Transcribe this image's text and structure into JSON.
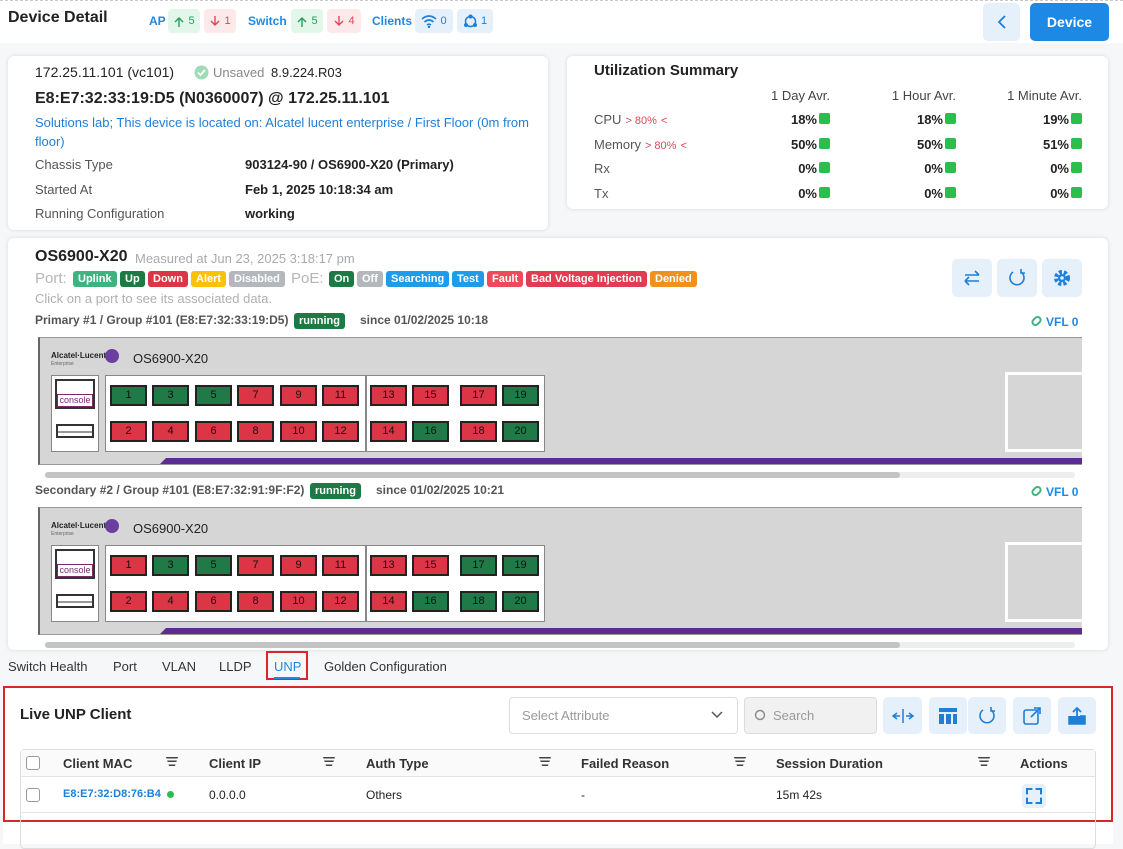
{
  "header": {
    "title": "Device Detail",
    "ap": {
      "label": "AP",
      "up": "5",
      "down": "1"
    },
    "switch": {
      "label": "Switch",
      "up": "5",
      "down": "4"
    },
    "clients": {
      "label": "Clients",
      "wireless": "0",
      "wired": "1"
    },
    "device_button": "Device"
  },
  "device": {
    "address": "172.25.11.101 (vc101)",
    "save_status": "Unsaved",
    "version": "8.9.224.R03",
    "name": "E8:E7:32:33:19:D5 (N0360007) @ 172.25.11.101",
    "location": "Solutions lab; This device is located on: Alcatel lucent enterprise / First Floor (0m from floor)",
    "fields": [
      {
        "label": "Chassis Type",
        "value": "903124-90 / OS6900-X20 (Primary)"
      },
      {
        "label": "Started At",
        "value": "Feb 1, 2025 10:18:34 am"
      },
      {
        "label": "Running Configuration",
        "value": "working"
      }
    ]
  },
  "utilization": {
    "title": "Utilization Summary",
    "columns": [
      "1 Day Avr.",
      "1 Hour Avr.",
      "1 Minute Avr."
    ],
    "rows": [
      {
        "label": "CPU",
        "threshold": "> 80%",
        "marker": "<",
        "values": [
          "18%",
          "18%",
          "19%"
        ]
      },
      {
        "label": "Memory",
        "threshold": "> 80%",
        "marker": "<",
        "values": [
          "50%",
          "50%",
          "51%"
        ]
      },
      {
        "label": "Rx",
        "values": [
          "0%",
          "0%",
          "0%"
        ]
      },
      {
        "label": "Tx",
        "values": [
          "0%",
          "0%",
          "0%"
        ]
      }
    ]
  },
  "chassis": {
    "model": "OS6900-X20",
    "measured": "Measured at Jun 23, 2025 3:18:17 pm",
    "port_label": "Port:",
    "port_states": [
      {
        "label": "Uplink",
        "color": "#3fb37f"
      },
      {
        "label": "Up",
        "color": "#1d7a45"
      },
      {
        "label": "Down",
        "color": "#dc3545"
      },
      {
        "label": "Alert",
        "color": "#ffc107"
      },
      {
        "label": "Disabled",
        "color": "#b4b8bd"
      }
    ],
    "poe_label": "PoE:",
    "poe_states": [
      {
        "label": "On",
        "color": "#1d7a45"
      },
      {
        "label": "Off",
        "color": "#b4b8bd"
      },
      {
        "label": "Searching",
        "color": "#1f9ce9"
      },
      {
        "label": "Test",
        "color": "#1f9ce9"
      },
      {
        "label": "Fault",
        "color": "#ee4a5a"
      },
      {
        "label": "Bad Voltage Injection",
        "color": "#e23b52"
      },
      {
        "label": "Denied",
        "color": "#f0901e"
      }
    ],
    "hint": "Click on a port to see its associated data.",
    "stacks": [
      {
        "title": "Primary #1 / Group #101 (E8:E7:32:33:19:D5)",
        "status": "running",
        "since": "since 01/02/2025 10:18",
        "vfl": "VFL 0",
        "brand": "Alcatel·Lucent",
        "brand_sub": "Enterprise",
        "model": "OS6900-X20",
        "console": "console",
        "ports": [
          {
            "label": "1",
            "color": "#1f7a47"
          },
          {
            "label": "2",
            "color": "#dc3545"
          },
          {
            "label": "3",
            "color": "#1f7a47"
          },
          {
            "label": "4",
            "color": "#dc3545"
          },
          {
            "label": "5",
            "color": "#1f7a47"
          },
          {
            "label": "6",
            "color": "#dc3545"
          },
          {
            "label": "7",
            "color": "#dc3545"
          },
          {
            "label": "8",
            "color": "#dc3545"
          },
          {
            "label": "9",
            "color": "#dc3545"
          },
          {
            "label": "10",
            "color": "#dc3545"
          },
          {
            "label": "11",
            "color": "#dc3545"
          },
          {
            "label": "12",
            "color": "#dc3545"
          },
          {
            "label": "13",
            "color": "#dc3545"
          },
          {
            "label": "14",
            "color": "#dc3545"
          },
          {
            "label": "15",
            "color": "#dc3545"
          },
          {
            "label": "16",
            "color": "#1f7a47"
          },
          {
            "label": "17",
            "color": "#dc3545"
          },
          {
            "label": "18",
            "color": "#dc3545"
          },
          {
            "label": "19",
            "color": "#1f7a47"
          },
          {
            "label": "20",
            "color": "#1f7a47"
          }
        ]
      },
      {
        "title": "Secondary #2 / Group #101 (E8:E7:32:91:9F:F2)",
        "status": "running",
        "since": "since 01/02/2025 10:21",
        "vfl": "VFL 0",
        "brand": "Alcatel·Lucent",
        "brand_sub": "Enterprise",
        "model": "OS6900-X20",
        "console": "console",
        "ports": [
          {
            "label": "1",
            "color": "#dc3545"
          },
          {
            "label": "2",
            "color": "#dc3545"
          },
          {
            "label": "3",
            "color": "#1f7a47"
          },
          {
            "label": "4",
            "color": "#dc3545"
          },
          {
            "label": "5",
            "color": "#1f7a47"
          },
          {
            "label": "6",
            "color": "#dc3545"
          },
          {
            "label": "7",
            "color": "#dc3545"
          },
          {
            "label": "8",
            "color": "#dc3545"
          },
          {
            "label": "9",
            "color": "#dc3545"
          },
          {
            "label": "10",
            "color": "#dc3545"
          },
          {
            "label": "11",
            "color": "#dc3545"
          },
          {
            "label": "12",
            "color": "#dc3545"
          },
          {
            "label": "13",
            "color": "#dc3545"
          },
          {
            "label": "14",
            "color": "#dc3545"
          },
          {
            "label": "15",
            "color": "#dc3545"
          },
          {
            "label": "16",
            "color": "#1f7a47"
          },
          {
            "label": "17",
            "color": "#1f7a47"
          },
          {
            "label": "18",
            "color": "#1f7a47"
          },
          {
            "label": "19",
            "color": "#1f7a47"
          },
          {
            "label": "20",
            "color": "#1f7a47"
          }
        ]
      }
    ]
  },
  "tabs": {
    "items": [
      "Switch Health",
      "Port",
      "VLAN",
      "LLDP",
      "UNP",
      "Golden Configuration"
    ],
    "active": 4
  },
  "clients": {
    "title": "Live UNP Client",
    "select_placeholder": "Select Attribute",
    "search_placeholder": "Search",
    "columns": [
      "Client MAC",
      "Client IP",
      "Auth Type",
      "Failed Reason",
      "Session Duration",
      "Actions"
    ],
    "rows": [
      [
        "E8:E7:32:D8:76:B4",
        "0.0.0.0",
        "Others",
        "-",
        "15m 42s"
      ]
    ]
  }
}
